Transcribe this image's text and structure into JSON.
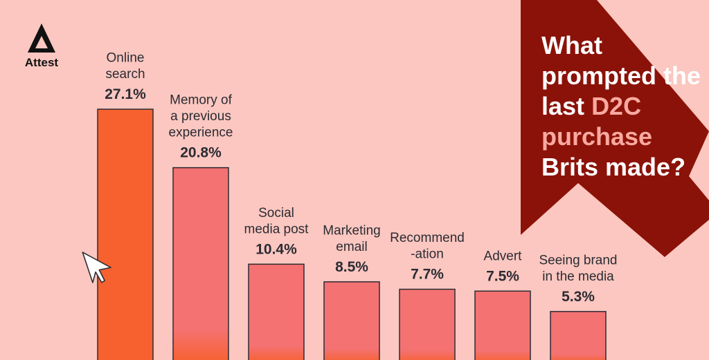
{
  "brand": {
    "name": "Attest"
  },
  "headline": {
    "part1": "What prompted the last",
    "highlight": "D2C purchase",
    "part2": "Brits made?"
  },
  "colors": {
    "background": "#fbc7c0",
    "bar_primary": "#f7612f",
    "bar_secondary": "#f47272",
    "bar_bottom_tint": "#f7612f",
    "arrow": "#8b1208",
    "text": "#2b2b33",
    "headline_highlight": "#f9a9a0"
  },
  "chart_data": {
    "type": "bar",
    "categories": [
      [
        "Online",
        "search"
      ],
      [
        "Memory of",
        "a previous",
        "experience"
      ],
      [
        "Social",
        "media post"
      ],
      [
        "Marketing",
        "email"
      ],
      [
        "Recommend",
        "-ation"
      ],
      [
        "Advert"
      ],
      [
        "Seeing brand",
        "in the media"
      ]
    ],
    "values": [
      27.1,
      20.8,
      10.4,
      8.5,
      7.7,
      7.5,
      5.3
    ],
    "value_labels": [
      "27.1%",
      "20.8%",
      "10.4%",
      "8.5%",
      "7.7%",
      "7.5%",
      "5.3%"
    ],
    "title": "",
    "xlabel": "",
    "ylabel": "",
    "unit": "%",
    "grid": false,
    "legend": "none"
  }
}
